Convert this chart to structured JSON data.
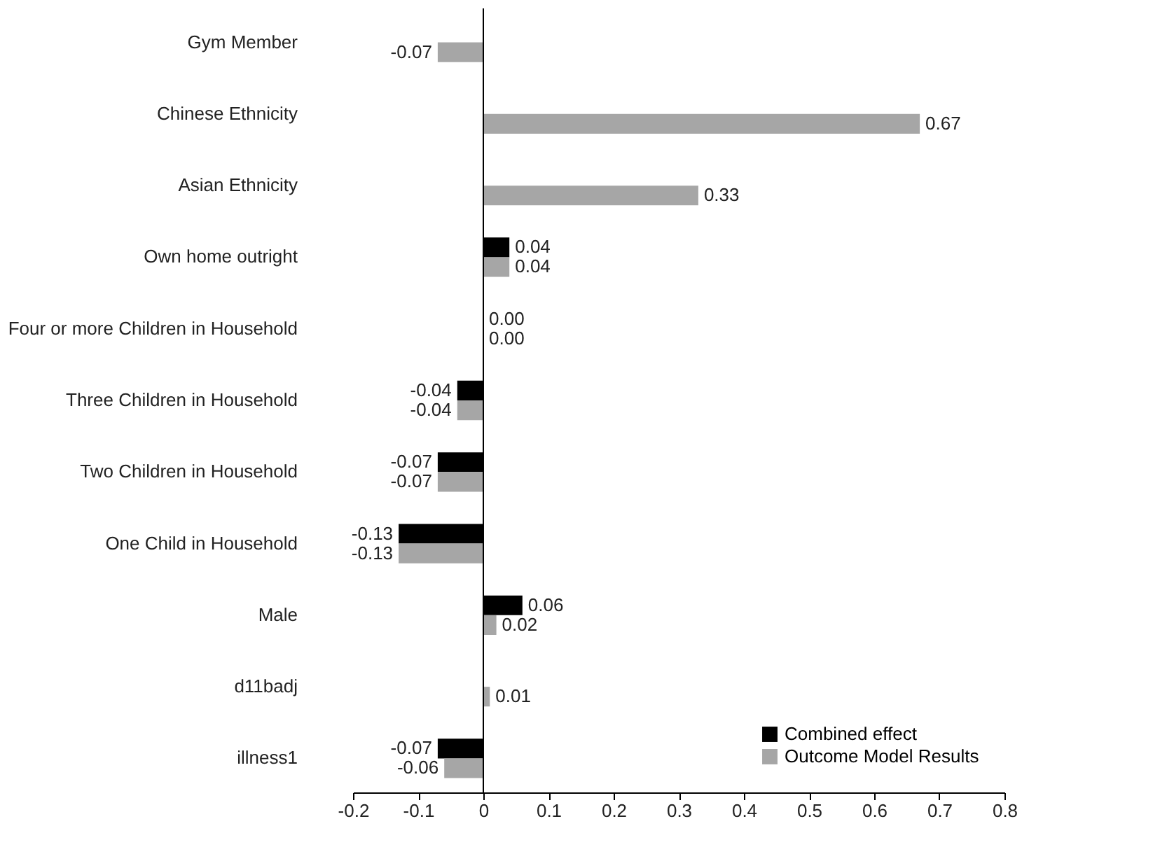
{
  "chart_data": {
    "type": "bar",
    "orientation": "horizontal",
    "categories": [
      "Gym Member",
      "Chinese Ethnicity",
      "Asian Ethnicity",
      "Own home outright",
      "Four or more Children in Household",
      "Three Children in Household",
      "Two Children in Household",
      "One Child in Household",
      "Male",
      "d11badj",
      "illness1"
    ],
    "series": [
      {
        "name": "Combined effect",
        "color": "#000000",
        "values": [
          null,
          null,
          null,
          0.04,
          0.0,
          -0.04,
          -0.07,
          -0.13,
          0.06,
          null,
          -0.07
        ],
        "value_labels": [
          null,
          null,
          null,
          "0.04",
          "0.00",
          "-0.04",
          "-0.07",
          "-0.13",
          "0.06",
          null,
          "-0.07"
        ]
      },
      {
        "name": "Outcome Model Results",
        "color": "#a6a6a6",
        "values": [
          -0.07,
          0.67,
          0.33,
          0.04,
          0.0,
          -0.04,
          -0.07,
          -0.13,
          0.02,
          0.01,
          -0.06
        ],
        "value_labels": [
          "-0.07",
          "0.67",
          "0.33",
          "0.04",
          "0.00",
          "-0.04",
          "-0.07",
          "-0.13",
          "0.02",
          "0.01",
          "-0.06"
        ]
      }
    ],
    "xlim": [
      -0.2,
      0.8
    ],
    "xticks": [
      -0.2,
      -0.1,
      0,
      0.1,
      0.2,
      0.3,
      0.4,
      0.5,
      0.6,
      0.7,
      0.8
    ],
    "ref_lines": [
      {
        "axis": "x",
        "value": 0,
        "color": "#000000"
      }
    ],
    "grid": false,
    "legend": "bottom right"
  }
}
